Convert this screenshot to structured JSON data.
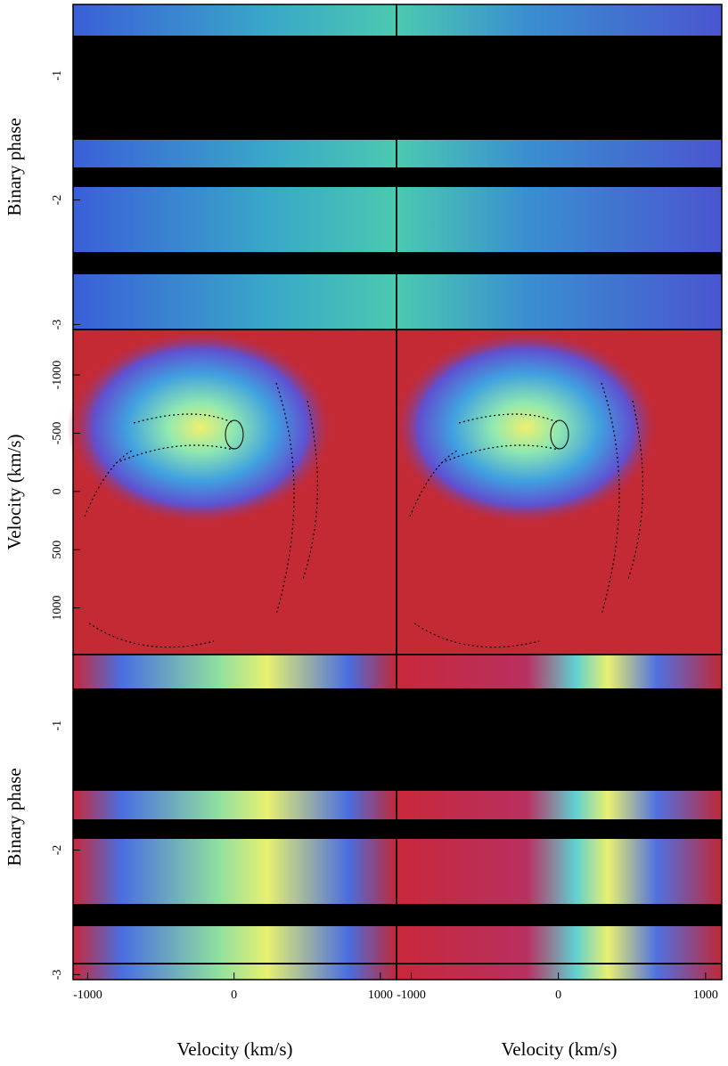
{
  "chart_data": [
    {
      "type": "image",
      "ylabel": "Binary phase",
      "ylim": [
        -0.43,
        -3.04
      ],
      "yticks": [
        -1,
        -2,
        -3
      ]
    },
    {
      "type": "image",
      "ylim": [
        -0.43,
        -3.04
      ]
    },
    {
      "type": "image",
      "ylabel": "Velocity (km/s)",
      "xlim": [
        -1100,
        1110
      ],
      "ylim": [
        -1390,
        1400
      ],
      "yticks": [
        1000,
        500,
        0,
        -500,
        -1000
      ]
    },
    {
      "type": "image",
      "xlim": [
        -1100,
        1110
      ],
      "ylim": [
        -1390,
        1400
      ]
    },
    {
      "type": "image",
      "ylabel": "Binary phase",
      "ylim": [
        -0.43,
        -3.04
      ],
      "yticks": [
        -1,
        -2,
        -3
      ],
      "xlabel": "Velocity (km/s)",
      "xlim": [
        -1100,
        1110
      ],
      "xticks": [
        -1000,
        0,
        1000
      ]
    },
    {
      "type": "image",
      "xlabel": "Velocity (km/s)",
      "xlim": [
        -1100,
        1110
      ],
      "xticks": [
        -1000,
        0,
        1000
      ]
    }
  ]
}
